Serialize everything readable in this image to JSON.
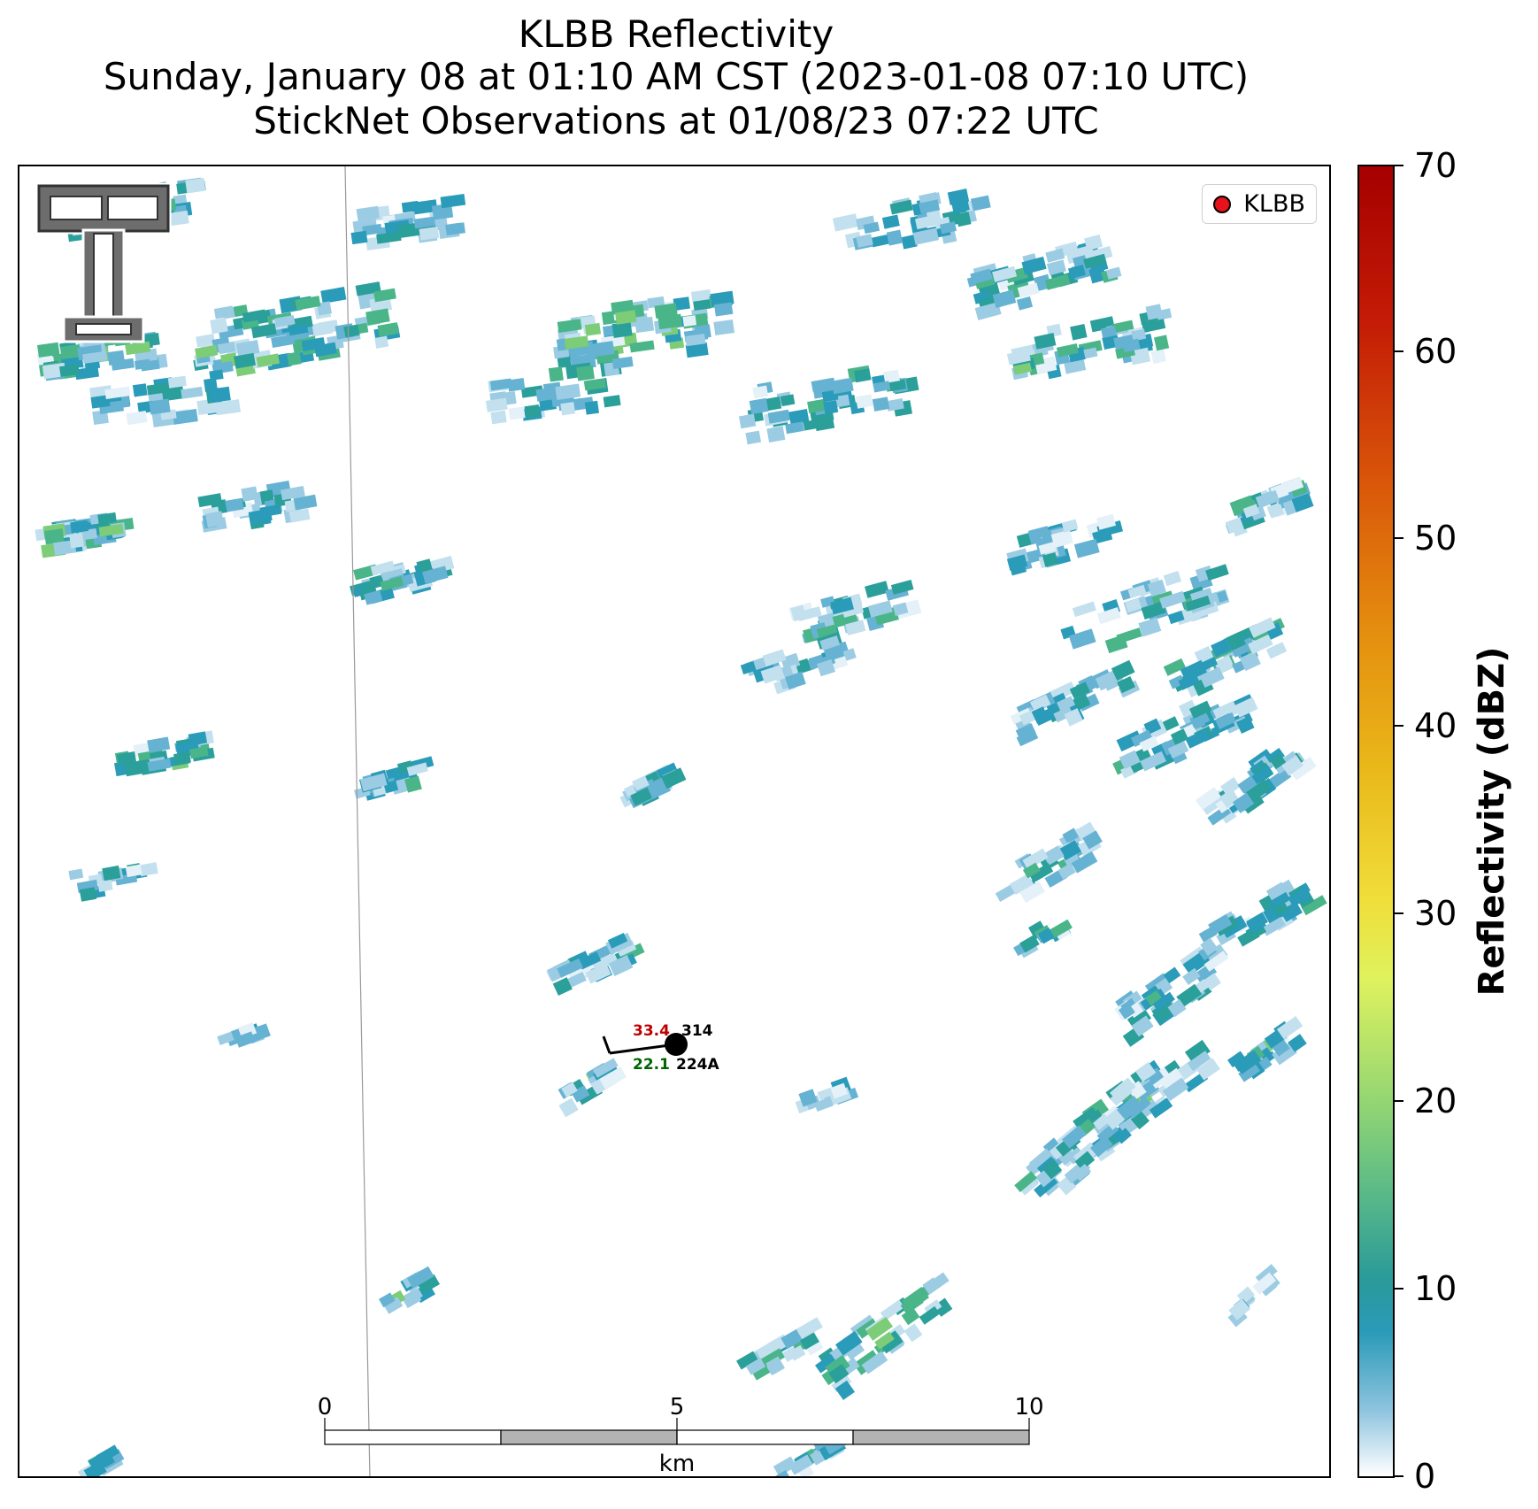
{
  "title": {
    "line1": "KLBB Reflectivity",
    "line2": "Sunday, January 08 at 01:10 AM CST (2023-01-08 07:10 UTC)",
    "line3": "StickNet Observations at 01/08/23 07:22 UTC"
  },
  "legend": {
    "label": "KLBB",
    "marker_color": "#e8121a"
  },
  "station": {
    "temperature": "33.4",
    "dewpoint": "22.1",
    "pressure_code": "314",
    "station_id": "224A",
    "temperature_color": "#c00000",
    "dewpoint_color": "#006400"
  },
  "scale_bar": {
    "ticks": [
      "0",
      "5",
      "10"
    ],
    "unit": "km"
  },
  "colorbar": {
    "title": "Reflectivity (dBZ)",
    "ticks": [
      "0",
      "10",
      "20",
      "30",
      "40",
      "50",
      "60",
      "70"
    ],
    "range": [
      0,
      70
    ],
    "colors": {
      "low": "#ffffff",
      "teal": "#2a9bb8",
      "green": "#5cbb86",
      "yellow": "#dff25e",
      "orange": "#e5900f",
      "red": "#a60000"
    }
  },
  "logo": {
    "alt": "Texas Tech double-T logo"
  }
}
